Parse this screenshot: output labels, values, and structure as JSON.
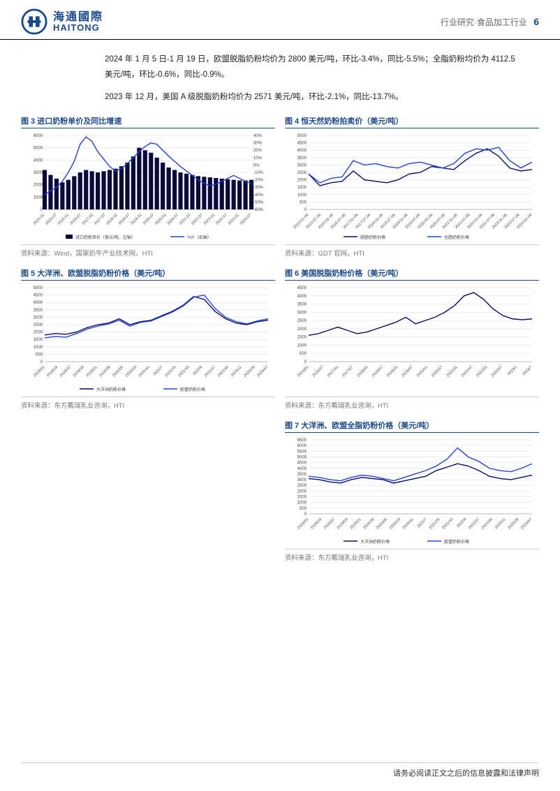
{
  "header": {
    "logo_cn": "海通國際",
    "logo_en": "HAITONG",
    "breadcrumb": "行业研究·食品加工行业",
    "page_num": "6"
  },
  "body_text": {
    "p1": "2024 年 1 月 5 日-1 月 19 日，欧盟脱脂奶粉均价为 2800 美元/吨，环比-3.4%，同比-5.5%；全脂奶粉均价为 4112.5 美元/吨，环比-0.6%，同比-0.9%。",
    "p2": "2023 年 12 月，美国 A 级脱脂奶粉均价为 2571 美元/吨，环比-2.1%，同比-13.7%。"
  },
  "charts": {
    "c3": {
      "title": "图 3  进口奶粉单价及同比增速",
      "source": "资料来源：Wind，国家奶牛产业技术网，HTI",
      "type": "bar_line",
      "y1_ticks": [
        0,
        1000,
        2000,
        3000,
        4000,
        5000,
        6000
      ],
      "y2_ticks": [
        -60,
        -50,
        -40,
        -30,
        -20,
        -10,
        0,
        10,
        20,
        30,
        40
      ],
      "y2_suffix": "%",
      "x_labels": [
        "2015-01",
        "2015-07",
        "2016-01",
        "2016-07",
        "2017-01",
        "2017-07",
        "2018-01",
        "2018-07",
        "2019-01",
        "2019-07",
        "2020-01",
        "2020-07",
        "2021-01",
        "2021-07",
        "2022-01",
        "2022-07",
        "2023-01",
        "2023-07"
      ],
      "bar_color": "#0a0a3a",
      "line_color": "#2040d0",
      "grid_color": "#dcdcdc",
      "bar_values": [
        3200,
        2800,
        2500,
        2200,
        2400,
        2700,
        3000,
        3200,
        3100,
        3000,
        3100,
        3200,
        3300,
        3500,
        3800,
        4300,
        5000,
        4800,
        4600,
        4200,
        3800,
        3400,
        3200,
        3000,
        2900,
        2800,
        2700,
        2650,
        2600,
        2550,
        2500,
        2450,
        2400,
        2350,
        2350,
        2400
      ],
      "line_values": [
        -40,
        -35,
        -30,
        -22,
        -10,
        5,
        28,
        38,
        32,
        18,
        8,
        -2,
        -8,
        -5,
        2,
        10,
        18,
        25,
        30,
        28,
        20,
        12,
        5,
        -2,
        -8,
        -14,
        -20,
        -25,
        -28,
        -26,
        -22,
        -18,
        -14,
        -18,
        -22,
        -25
      ],
      "legend1": "进口奶粉单价（美元/吨，左轴）",
      "legend2": "YoY（右轴）"
    },
    "c4": {
      "title": "图 4  恒天然奶粉拍卖价（美元/吨）",
      "source": "资料来源：GDT 官网，HTI",
      "type": "two_line",
      "y_ticks": [
        0,
        500,
        1000,
        1500,
        2000,
        2500,
        3000,
        3500,
        4000,
        4500,
        5000
      ],
      "x_labels": [
        "2015-01-06",
        "2015-07-06",
        "2016-01-06",
        "2016-07-06",
        "2017-01-06",
        "2017-07-06",
        "2018-01-06",
        "2018-07-06",
        "2019-01-06",
        "2019-07-06",
        "2020-01-06",
        "2020-07-06",
        "2021-01-06",
        "2021-07-06",
        "2022-01-06",
        "2022-07-06",
        "2023-01-06",
        "2023-07-06",
        "2024-01-06"
      ],
      "colors": [
        "#0a0a6a",
        "#2040e8"
      ],
      "grid_color": "#dcdcdc",
      "series1": [
        2400,
        1600,
        1800,
        1900,
        2600,
        2000,
        1900,
        1800,
        2000,
        2400,
        2500,
        2900,
        2800,
        2700,
        3300,
        3800,
        4100,
        3600,
        2800,
        2600,
        2700
      ],
      "series2": [
        2400,
        1800,
        2100,
        2200,
        3300,
        3000,
        3100,
        2900,
        2800,
        3100,
        3200,
        3000,
        2800,
        3100,
        3800,
        4100,
        4000,
        4200,
        3300,
        2800,
        3200
      ],
      "legend1": "脱脂奶粉价格",
      "legend2": "全脂奶粉价格"
    },
    "c5": {
      "title": "图 5  大洋洲、欧盟脱脂奶粉价格（美元/吨）",
      "source": "资料来源：东方戴瑞乳业咨询，HTI",
      "type": "two_line",
      "y_ticks": [
        0,
        500,
        1000,
        1500,
        2000,
        2500,
        3000,
        3500,
        4000,
        4500,
        5000
      ],
      "x_labels": [
        "2018/01",
        "2018/19",
        "2018/37",
        "2019/03",
        "2019/21",
        "2019/39",
        "2020/05",
        "2020/23",
        "2020/41",
        "2021/7",
        "2021/25",
        "2021/43",
        "2022/9",
        "2022/27",
        "2022/45",
        "2023/11",
        "2023/29",
        "2023/47"
      ],
      "colors": [
        "#0a0a6a",
        "#2040e8"
      ],
      "grid_color": "#dcdcdc",
      "series1": [
        1800,
        1900,
        1850,
        2000,
        2300,
        2500,
        2600,
        2900,
        2500,
        2700,
        2800,
        3100,
        3400,
        3800,
        4400,
        4200,
        3400,
        2900,
        2600,
        2500,
        2700,
        2800
      ],
      "series2": [
        1600,
        1700,
        1650,
        1900,
        2200,
        2400,
        2550,
        2800,
        2400,
        2650,
        2750,
        3050,
        3350,
        3750,
        4350,
        4500,
        3600,
        3000,
        2700,
        2550,
        2750,
        2900
      ],
      "legend1": "大洋洲奶粉价格",
      "legend2": "欧盟奶粉价格"
    },
    "c6": {
      "title": "图 6  美国脱脂奶粉价格（美元/吨）",
      "source": "资料来源：东方戴瑞乳业咨询，HTI",
      "type": "one_line",
      "y_ticks": [
        0,
        500,
        1000,
        1500,
        2000,
        2500,
        3000,
        3500,
        4000,
        4500
      ],
      "x_labels": [
        "2016/01",
        "2016/07",
        "2017/01",
        "2017/07",
        "2018/01",
        "2018/07",
        "2019/01",
        "2019/07",
        "2020/01",
        "2020/07",
        "2021/01",
        "2021/07",
        "2022/01",
        "2022/07",
        "2023/1",
        "2023/7"
      ],
      "color": "#0a0a6a",
      "grid_color": "#dcdcdc",
      "series": [
        1600,
        1700,
        1900,
        2100,
        1900,
        1700,
        1800,
        2000,
        2200,
        2400,
        2700,
        2300,
        2500,
        2700,
        3000,
        3400,
        4000,
        4200,
        3800,
        3200,
        2800,
        2600,
        2550,
        2600
      ]
    },
    "c7": {
      "title": "图 7  大洋洲、欧盟全脂奶粉价格（美元/吨）",
      "source": "资料来源：东方戴瑞乳业咨询，HTI",
      "type": "two_line",
      "y_ticks": [
        0,
        500,
        1000,
        1500,
        2000,
        2500,
        3000,
        3500,
        4000,
        4500,
        5000,
        5500,
        6000,
        6500
      ],
      "x_labels": [
        "2018/01",
        "2018/19",
        "2018/37",
        "2019/03",
        "2019/21",
        "2019/39",
        "2020/05",
        "2020/23",
        "2020/41",
        "2021/7",
        "2021/25",
        "2021/43",
        "2022/9",
        "2022/27",
        "2022/45",
        "2023/11",
        "2023/29",
        "2023/47"
      ],
      "colors": [
        "#0a0a6a",
        "#2040e8"
      ],
      "grid_color": "#dcdcdc",
      "series1": [
        3100,
        3000,
        2800,
        2700,
        3000,
        3200,
        3100,
        3000,
        2700,
        2900,
        3100,
        3300,
        3800,
        4100,
        4400,
        4200,
        3800,
        3300,
        3100,
        3000,
        3200,
        3400
      ],
      "series2": [
        3300,
        3200,
        3000,
        2900,
        3200,
        3400,
        3300,
        3100,
        2900,
        3200,
        3500,
        3800,
        4200,
        4800,
        5800,
        5000,
        4600,
        4000,
        3800,
        3700,
        4000,
        4400
      ],
      "legend1": "大洋洲奶粉价格",
      "legend2": "欧盟奶粉价格"
    }
  },
  "footer": "请务必阅读正文之后的信息披露和法律声明"
}
